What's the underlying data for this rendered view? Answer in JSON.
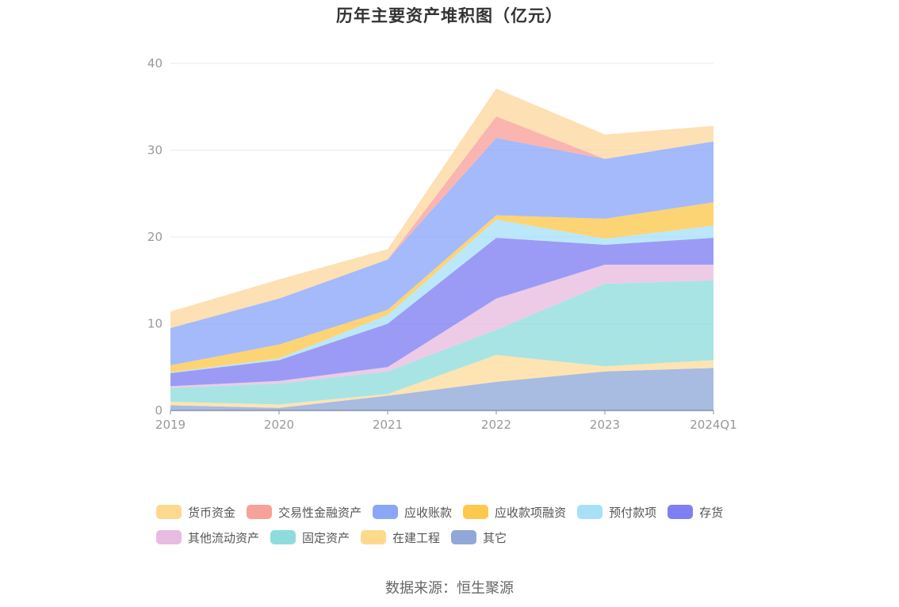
{
  "chart_data": {
    "type": "area",
    "stacked": true,
    "title": "历年主要资产堆积图（亿元）",
    "categories": [
      "2019",
      "2020",
      "2021",
      "2022",
      "2023",
      "2024Q1"
    ],
    "ylim": [
      0,
      40
    ],
    "yticks": [
      0,
      10,
      20,
      30,
      40
    ],
    "grid": true,
    "legend_position": "bottom",
    "series": [
      {
        "name": "其它",
        "color": "#8fa8d8",
        "values": [
          0.6,
          0.3,
          1.7,
          3.3,
          4.5,
          4.9
        ]
      },
      {
        "name": "在建工程",
        "color": "#fddc9c",
        "values": [
          0.4,
          0.4,
          0.2,
          3.1,
          0.6,
          0.9
        ]
      },
      {
        "name": "固定资产",
        "color": "#8fdcdc",
        "values": [
          1.6,
          2.4,
          2.6,
          2.9,
          9.5,
          9.2
        ]
      },
      {
        "name": "其他流动资产",
        "color": "#e8bce0",
        "values": [
          0.2,
          0.3,
          0.5,
          3.6,
          2.2,
          1.8
        ]
      },
      {
        "name": "存货",
        "color": "#7f7ff2",
        "values": [
          1.5,
          2.4,
          5.0,
          7.0,
          2.3,
          3.1
        ]
      },
      {
        "name": "预付款项",
        "color": "#a8e0f8",
        "values": [
          0.1,
          0.2,
          1.0,
          2.1,
          0.7,
          1.4
        ]
      },
      {
        "name": "应收款项融资",
        "color": "#fdc84c",
        "values": [
          0.8,
          1.6,
          0.6,
          0.5,
          2.3,
          2.7
        ]
      },
      {
        "name": "应收账款",
        "color": "#8aa6f8",
        "values": [
          4.3,
          5.3,
          5.8,
          8.9,
          6.9,
          7.0
        ]
      },
      {
        "name": "交易性金融资产",
        "color": "#f8a09a",
        "values": [
          0,
          0,
          0,
          2.5,
          0,
          0
        ]
      },
      {
        "name": "货币资金",
        "color": "#fdd79e",
        "values": [
          1.9,
          2.2,
          1.2,
          3.2,
          2.8,
          1.8
        ]
      }
    ]
  },
  "legend": {
    "row1": [
      {
        "label": "货币资金",
        "color": "#fdd98e"
      },
      {
        "label": "交易性金融资产",
        "color": "#f8a09a"
      },
      {
        "label": "应收账款",
        "color": "#8aa6f8"
      },
      {
        "label": "应收款项融资",
        "color": "#fdc84c"
      },
      {
        "label": "预付款项",
        "color": "#a8e0f8"
      },
      {
        "label": "存货",
        "color": "#7f7ff2"
      }
    ],
    "row2": [
      {
        "label": "其他流动资产",
        "color": "#e8bce0"
      },
      {
        "label": "固定资产",
        "color": "#8fdcdc"
      },
      {
        "label": "在建工程",
        "color": "#fdd98e"
      },
      {
        "label": "其它",
        "color": "#8fa8d8"
      }
    ]
  },
  "source": "数据来源：恒生聚源"
}
